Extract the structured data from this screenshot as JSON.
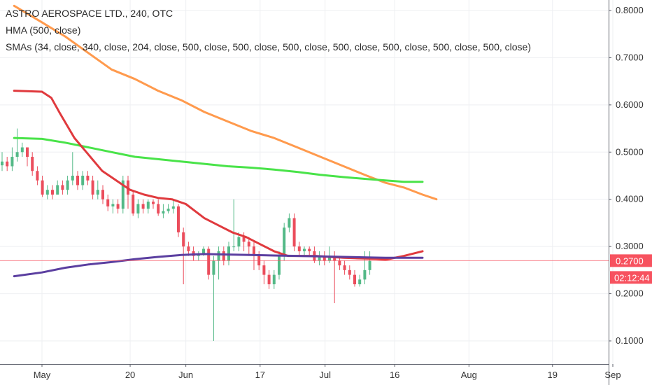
{
  "legend": {
    "title": "ASTRO AEROSPACE LTD., 240, OTC",
    "hma": "HMA (500, close)",
    "smas": "SMAs (34, close, 340, close, 204, close, 500, close, 500, close, 500, close, 500, close, 500, close, 500, close, 500, close)"
  },
  "chart_data": {
    "type": "line",
    "title": "ASTRO AEROSPACE LTD., 240, OTC",
    "ylim": [
      0.06,
      0.83
    ],
    "yticks": [
      {
        "value": 0.8,
        "label": "0.8000"
      },
      {
        "value": 0.7,
        "label": "0.7000"
      },
      {
        "value": 0.6,
        "label": "0.6000"
      },
      {
        "value": 0.5,
        "label": "0.5000"
      },
      {
        "value": 0.4,
        "label": "0.4000"
      },
      {
        "value": 0.3,
        "label": "0.3000"
      },
      {
        "value": 0.2,
        "label": "0.2000"
      },
      {
        "value": 0.1,
        "label": "0.1000"
      }
    ],
    "xticks": [
      {
        "label": "May",
        "day": 0
      },
      {
        "label": "20",
        "day": 19
      },
      {
        "label": "Jun",
        "day": 31
      },
      {
        "label": "17",
        "day": 47
      },
      {
        "label": "Jul",
        "day": 61
      },
      {
        "label": "16",
        "day": 76
      },
      {
        "label": "Aug",
        "day": 92
      },
      {
        "label": "19",
        "day": 110
      },
      {
        "label": "Sep",
        "day": 123
      }
    ],
    "price_line": {
      "value": 0.27,
      "label": "0.2700",
      "color": "#f7525f"
    },
    "countdown": {
      "label": "02:12:44",
      "color": "#f7525f"
    },
    "series": [
      {
        "color": "#ff9a4d",
        "values": [
          [
            -6,
            0.81
          ],
          [
            0,
            0.775
          ],
          [
            5,
            0.745
          ],
          [
            10,
            0.71
          ],
          [
            15,
            0.675
          ],
          [
            20,
            0.655
          ],
          [
            25,
            0.63
          ],
          [
            30,
            0.61
          ],
          [
            35,
            0.585
          ],
          [
            40,
            0.565
          ],
          [
            45,
            0.545
          ],
          [
            50,
            0.53
          ],
          [
            55,
            0.51
          ],
          [
            60,
            0.49
          ],
          [
            65,
            0.47
          ],
          [
            70,
            0.45
          ],
          [
            74,
            0.435
          ],
          [
            78,
            0.425
          ],
          [
            82,
            0.41
          ],
          [
            85,
            0.4
          ]
        ]
      },
      {
        "color": "#49e349",
        "values": [
          [
            -6,
            0.53
          ],
          [
            0,
            0.528
          ],
          [
            5,
            0.52
          ],
          [
            10,
            0.51
          ],
          [
            15,
            0.5
          ],
          [
            20,
            0.49
          ],
          [
            25,
            0.485
          ],
          [
            30,
            0.48
          ],
          [
            35,
            0.475
          ],
          [
            40,
            0.47
          ],
          [
            45,
            0.467
          ],
          [
            50,
            0.463
          ],
          [
            55,
            0.458
          ],
          [
            60,
            0.452
          ],
          [
            65,
            0.447
          ],
          [
            70,
            0.443
          ],
          [
            74,
            0.44
          ],
          [
            78,
            0.437
          ],
          [
            82,
            0.437
          ]
        ]
      },
      {
        "color": "#e03a3e",
        "values": [
          [
            -6,
            0.63
          ],
          [
            0,
            0.628
          ],
          [
            2,
            0.615
          ],
          [
            4,
            0.58
          ],
          [
            7,
            0.53
          ],
          [
            10,
            0.495
          ],
          [
            13,
            0.46
          ],
          [
            16,
            0.44
          ],
          [
            19,
            0.42
          ],
          [
            22,
            0.41
          ],
          [
            25,
            0.403
          ],
          [
            28,
            0.4
          ],
          [
            31,
            0.39
          ],
          [
            33,
            0.375
          ],
          [
            35,
            0.36
          ],
          [
            38,
            0.345
          ],
          [
            41,
            0.33
          ],
          [
            44,
            0.32
          ],
          [
            47,
            0.305
          ],
          [
            50,
            0.29
          ],
          [
            53,
            0.28
          ],
          [
            56,
            0.28
          ],
          [
            59,
            0.28
          ],
          [
            62,
            0.278
          ],
          [
            65,
            0.276
          ],
          [
            68,
            0.275
          ],
          [
            72,
            0.274
          ],
          [
            74,
            0.272
          ],
          [
            78,
            0.28
          ],
          [
            82,
            0.29
          ]
        ]
      },
      {
        "color": "#5b3fa0",
        "values": [
          [
            -6,
            0.237
          ],
          [
            0,
            0.245
          ],
          [
            5,
            0.255
          ],
          [
            10,
            0.262
          ],
          [
            15,
            0.267
          ],
          [
            20,
            0.273
          ],
          [
            25,
            0.278
          ],
          [
            30,
            0.282
          ],
          [
            35,
            0.284
          ],
          [
            40,
            0.283
          ],
          [
            45,
            0.282
          ],
          [
            50,
            0.281
          ],
          [
            55,
            0.28
          ],
          [
            60,
            0.279
          ],
          [
            65,
            0.278
          ],
          [
            70,
            0.277
          ],
          [
            74,
            0.276
          ],
          [
            78,
            0.276
          ],
          [
            82,
            0.276
          ]
        ]
      }
    ],
    "candles": [
      [
        0.472,
        0.48,
        0.5,
        0.46
      ],
      [
        0.48,
        0.47,
        0.49,
        0.46
      ],
      [
        0.47,
        0.49,
        0.51,
        0.46
      ],
      [
        0.49,
        0.5,
        0.55,
        0.48
      ],
      [
        0.5,
        0.51,
        0.52,
        0.49
      ],
      [
        0.51,
        0.49,
        0.51,
        0.47
      ],
      [
        0.49,
        0.46,
        0.5,
        0.45
      ],
      [
        0.46,
        0.44,
        0.47,
        0.43
      ],
      [
        0.44,
        0.41,
        0.45,
        0.405
      ],
      [
        0.41,
        0.42,
        0.43,
        0.4
      ],
      [
        0.42,
        0.41,
        0.43,
        0.4
      ],
      [
        0.41,
        0.43,
        0.44,
        0.41
      ],
      [
        0.43,
        0.42,
        0.44,
        0.41
      ],
      [
        0.42,
        0.44,
        0.45,
        0.41
      ],
      [
        0.44,
        0.45,
        0.5,
        0.43
      ],
      [
        0.45,
        0.43,
        0.46,
        0.42
      ],
      [
        0.43,
        0.45,
        0.46,
        0.42
      ],
      [
        0.45,
        0.44,
        0.46,
        0.43
      ],
      [
        0.44,
        0.41,
        0.45,
        0.4
      ],
      [
        0.41,
        0.42,
        0.44,
        0.4
      ],
      [
        0.42,
        0.4,
        0.43,
        0.39
      ],
      [
        0.4,
        0.385,
        0.41,
        0.375
      ],
      [
        0.385,
        0.39,
        0.4,
        0.37
      ],
      [
        0.39,
        0.38,
        0.4,
        0.37
      ],
      [
        0.38,
        0.44,
        0.45,
        0.37
      ],
      [
        0.44,
        0.41,
        0.45,
        0.38
      ],
      [
        0.41,
        0.37,
        0.42,
        0.365
      ],
      [
        0.37,
        0.39,
        0.4,
        0.36
      ],
      [
        0.39,
        0.38,
        0.4,
        0.37
      ],
      [
        0.38,
        0.395,
        0.4,
        0.37
      ],
      [
        0.395,
        0.39,
        0.4,
        0.38
      ],
      [
        0.39,
        0.37,
        0.4,
        0.365
      ],
      [
        0.37,
        0.375,
        0.39,
        0.36
      ],
      [
        0.375,
        0.38,
        0.39,
        0.37
      ],
      [
        0.38,
        0.385,
        0.4,
        0.37
      ],
      [
        0.385,
        0.33,
        0.39,
        0.32
      ],
      [
        0.33,
        0.3,
        0.34,
        0.22
      ],
      [
        0.3,
        0.29,
        0.31,
        0.28
      ],
      [
        0.29,
        0.28,
        0.3,
        0.27
      ],
      [
        0.28,
        0.285,
        0.29,
        0.27
      ],
      [
        0.285,
        0.295,
        0.3,
        0.28
      ],
      [
        0.295,
        0.24,
        0.3,
        0.23
      ],
      [
        0.24,
        0.27,
        0.28,
        0.1
      ],
      [
        0.27,
        0.29,
        0.3,
        0.23
      ],
      [
        0.29,
        0.27,
        0.3,
        0.26
      ],
      [
        0.27,
        0.3,
        0.31,
        0.26
      ],
      [
        0.3,
        0.3,
        0.4,
        0.29
      ],
      [
        0.3,
        0.32,
        0.33,
        0.29
      ],
      [
        0.32,
        0.31,
        0.33,
        0.29
      ],
      [
        0.31,
        0.3,
        0.32,
        0.28
      ],
      [
        0.3,
        0.28,
        0.31,
        0.25
      ],
      [
        0.28,
        0.26,
        0.29,
        0.25
      ],
      [
        0.26,
        0.24,
        0.27,
        0.22
      ],
      [
        0.24,
        0.22,
        0.25,
        0.21
      ],
      [
        0.22,
        0.24,
        0.25,
        0.21
      ],
      [
        0.24,
        0.28,
        0.29,
        0.23
      ],
      [
        0.28,
        0.34,
        0.35,
        0.27
      ],
      [
        0.34,
        0.36,
        0.37,
        0.33
      ],
      [
        0.36,
        0.3,
        0.37,
        0.29
      ],
      [
        0.3,
        0.29,
        0.31,
        0.28
      ],
      [
        0.29,
        0.295,
        0.3,
        0.28
      ],
      [
        0.295,
        0.29,
        0.3,
        0.28
      ],
      [
        0.29,
        0.27,
        0.3,
        0.265
      ],
      [
        0.27,
        0.28,
        0.29,
        0.26
      ],
      [
        0.28,
        0.27,
        0.29,
        0.26
      ],
      [
        0.27,
        0.28,
        0.3,
        0.265
      ],
      [
        0.28,
        0.27,
        0.29,
        0.18
      ],
      [
        0.27,
        0.26,
        0.28,
        0.25
      ],
      [
        0.26,
        0.25,
        0.27,
        0.24
      ],
      [
        0.25,
        0.24,
        0.26,
        0.23
      ],
      [
        0.24,
        0.22,
        0.25,
        0.215
      ],
      [
        0.22,
        0.23,
        0.24,
        0.215
      ],
      [
        0.23,
        0.25,
        0.29,
        0.22
      ],
      [
        0.25,
        0.27,
        0.29,
        0.24
      ]
    ]
  }
}
